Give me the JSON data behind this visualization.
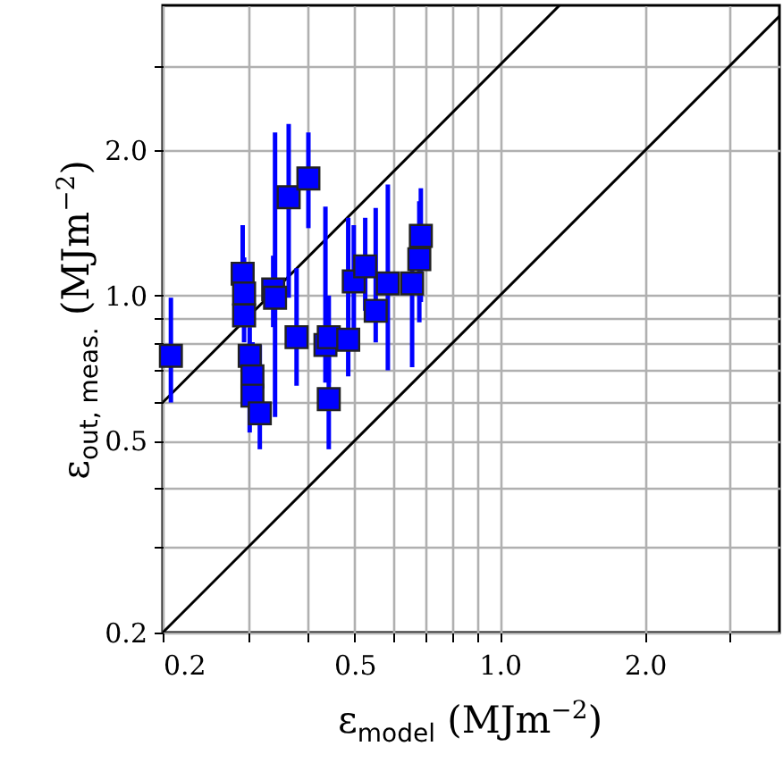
{
  "chart_data": {
    "type": "scatter",
    "xlabel": "ε$_{model}$ (MJm$^{−2}$)",
    "ylabel": "ε$_{out, meas.}$ (MJm$^{−2}$)",
    "log": "xy",
    "grid": true,
    "xlim": [
      0.2,
      3.8
    ],
    "ylim": [
      0.2,
      4
    ],
    "xticks": [
      0.2,
      {
        "value": 0.3,
        "label": null
      },
      {
        "value": 0.4,
        "label": null
      },
      0.5,
      {
        "value": 0.6,
        "label": null
      },
      {
        "value": 0.7,
        "label": null
      },
      {
        "value": 0.8,
        "label": null
      },
      {
        "value": 0.9,
        "label": null
      },
      {
        "value": 1,
        "label": "1.0"
      },
      {
        "value": 2,
        "label": "2.0"
      },
      {
        "value": 3,
        "label": null
      }
    ],
    "yticks": [
      0.2,
      {
        "value": 0.3,
        "label": null
      },
      {
        "value": 0.4,
        "label": null
      },
      0.5,
      {
        "value": 0.6,
        "label": null
      },
      {
        "value": 0.7,
        "label": null
      },
      {
        "value": 0.8,
        "label": null
      },
      {
        "value": 0.9,
        "label": null
      },
      {
        "value": 1,
        "label": "1.0"
      },
      {
        "value": 2,
        "label": "2.0"
      },
      {
        "value": 3,
        "label": null
      }
    ],
    "series": [
      {
        "type": "line",
        "color": "#000000",
        "line_style": "solid",
        "x": [
          0.2,
          3.8
        ],
        "values": [
          0.2,
          3.8
        ]
      },
      {
        "type": "line",
        "color": "#000000",
        "line_style": "solid",
        "x": [
          0.2,
          1.33
        ],
        "values": [
          0.6,
          4
        ]
      },
      {
        "color": "#0000ff",
        "marker": "square",
        "x": [
          0.208,
          0.293,
          0.295,
          0.295,
          0.303,
          0.307,
          0.307,
          0.318,
          0.339,
          0.342,
          0.365,
          0.379,
          0.401,
          0.435,
          0.442,
          0.442,
          0.485,
          0.498,
          0.526,
          0.553,
          0.586,
          0.658,
          0.681,
          0.686
        ],
        "values": [
          0.75,
          1.11,
          1.01,
          0.91,
          0.75,
          0.68,
          0.62,
          0.57,
          1.03,
          0.99,
          1.6,
          0.82,
          1.75,
          0.79,
          0.82,
          0.61,
          0.81,
          1.07,
          1.15,
          0.93,
          1.06,
          1.06,
          1.19,
          1.33
        ],
        "errors": [
          [
            0.6,
            0.99
          ],
          [
            1.11,
            1.4
          ],
          [
            1.01,
            1.2
          ],
          [
            0.8,
            1.05
          ],
          [
            0.52,
            0.86
          ],
          [
            0.54,
            0.8
          ],
          [
            0.54,
            0.8
          ],
          [
            0.48,
            0.79
          ],
          [
            0.86,
            1.21
          ],
          [
            0.56,
            2.18
          ],
          [
            0.99,
            2.27
          ],
          [
            0.65,
            1.14
          ],
          [
            1.38,
            2.18
          ],
          [
            0.66,
            1.53
          ],
          [
            0.66,
            1.0
          ],
          [
            0.48,
            0.75
          ],
          [
            0.68,
            1.45
          ],
          [
            0.85,
            1.4
          ],
          [
            0.93,
            1.45
          ],
          [
            0.8,
            1.52
          ],
          [
            0.7,
            1.7
          ],
          [
            0.71,
            1.25
          ],
          [
            0.88,
            1.57
          ],
          [
            0.97,
            1.67
          ]
        ]
      }
    ]
  }
}
